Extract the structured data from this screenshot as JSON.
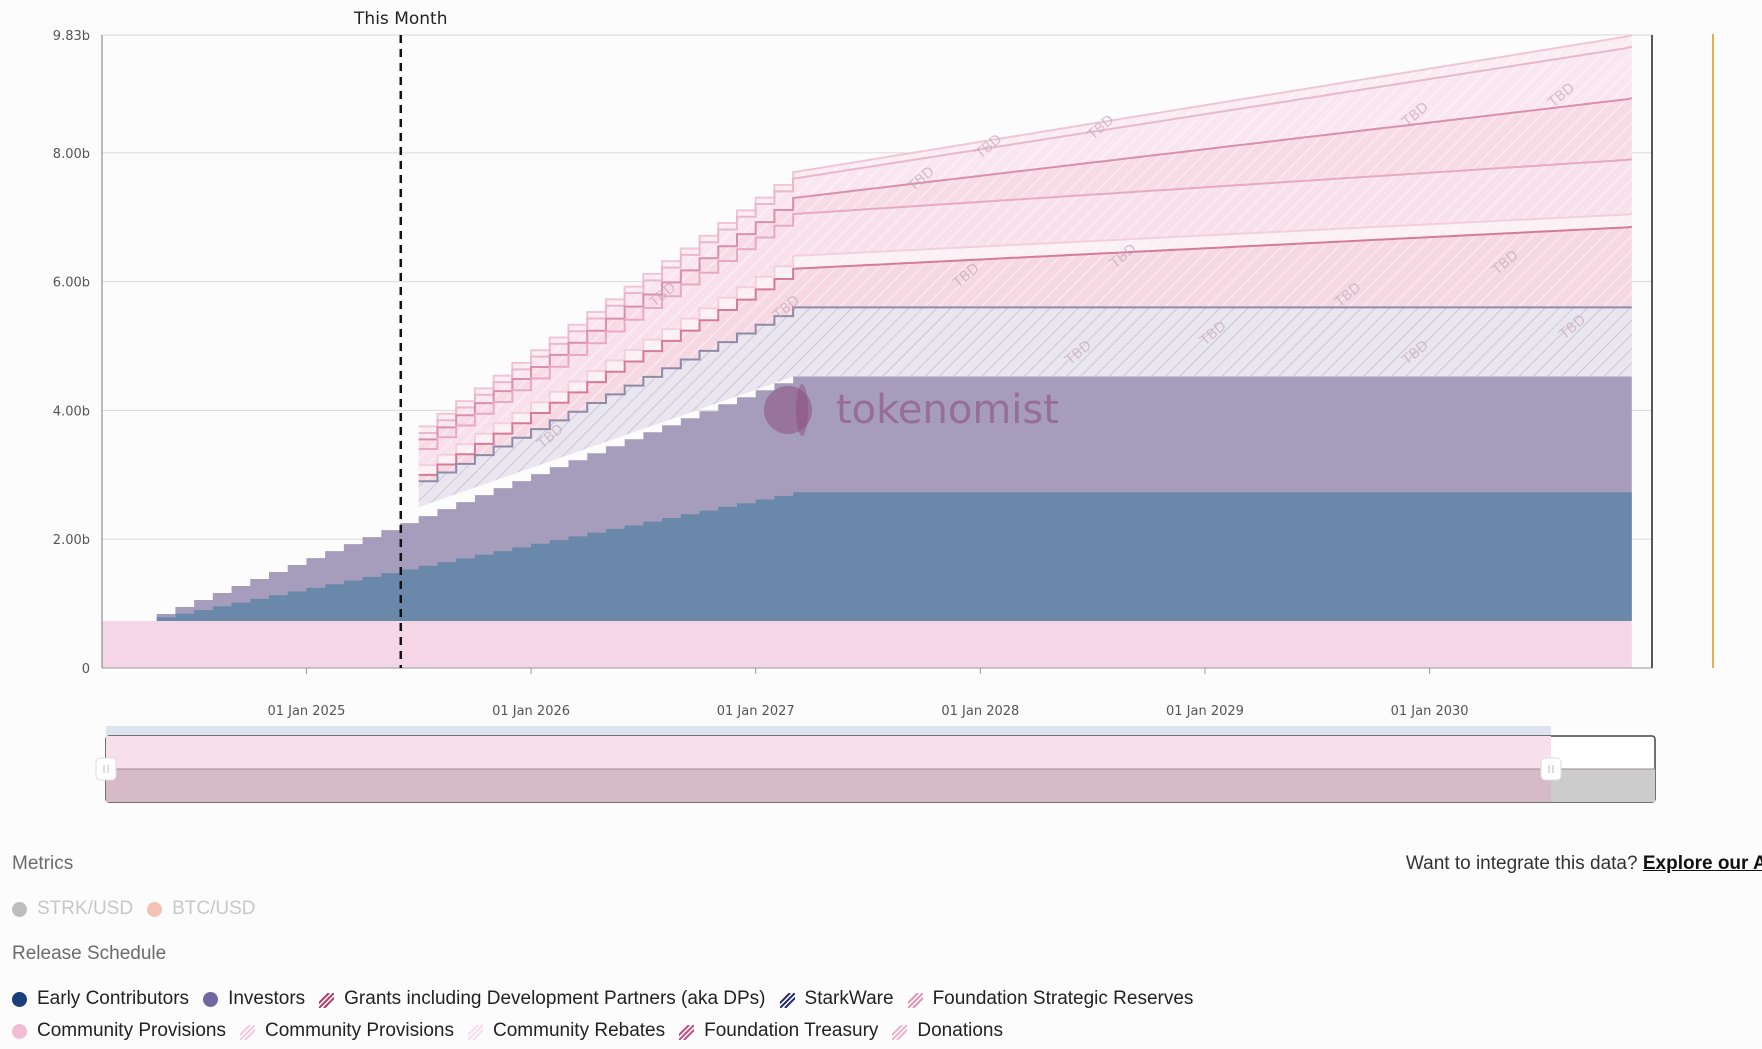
{
  "chart_data": {
    "type": "area",
    "marker_label": "This Month",
    "y_ticks": [
      "0",
      "2.00b",
      "4.00b",
      "6.00b",
      "8.00b",
      "9.83b"
    ],
    "y_tick_values": [
      0,
      2,
      4,
      6,
      8,
      9.83
    ],
    "x_ticks": [
      "01 Jan 2025",
      "01 Jan 2026",
      "01 Jan 2027",
      "01 Jan 2028",
      "01 Jan 2029",
      "01 Jan 2030"
    ],
    "x_tick_values": [
      2025.0,
      2026.0,
      2027.0,
      2028.0,
      2029.0,
      2030.0
    ],
    "x_range": [
      2024.09,
      2030.99
    ],
    "y_range": [
      0,
      9.83
    ],
    "marker_x": 2025.42,
    "watermark": "tokenomist",
    "tbd_label": "TBD",
    "series": [
      {
        "name": "Community Provisions",
        "type": "flat",
        "color": "#f5d6e6",
        "value": 0.73
      },
      {
        "name": "Early Contributors",
        "type": "step",
        "color": "#6a89aa",
        "start": 2024.25,
        "end": 2027.17,
        "from": 0.73,
        "to": 2.73
      },
      {
        "name": "Investors",
        "type": "step",
        "color": "#a69cbc",
        "start": 2024.25,
        "end": 2027.17,
        "from": 0.73,
        "to": 4.53,
        "baseline": "Early Contributors"
      },
      {
        "name": "StarkWare",
        "type": "stepband",
        "color": "#e9e6ef",
        "line": "#8f8aa8",
        "start": 2025.5,
        "end": 2027.17,
        "from": 2.9,
        "to": 5.6,
        "final": 5.6
      },
      {
        "name": "Grants including Development Partners (aka DPs)",
        "type": "stepband",
        "color": "#f6d8e2",
        "line": "#d67a9a",
        "start": 2025.5,
        "end": 2027.17,
        "from": 3.0,
        "to": 6.2,
        "final": 6.85
      },
      {
        "name": "Community Rebates",
        "type": "stepband",
        "color": "#fbf0f4",
        "line": "#f3cfdc",
        "start": 2025.5,
        "end": 2027.17,
        "from": 3.15,
        "to": 6.4,
        "final": 7.05
      },
      {
        "name": "Foundation Strategic Reserves",
        "type": "stepband",
        "color": "#f8e1ea",
        "line": "#e7aac2",
        "start": 2025.5,
        "end": 2027.17,
        "from": 3.4,
        "to": 7.05,
        "final": 7.9
      },
      {
        "name": "Foundation Treasury",
        "type": "stepband",
        "color": "#f7dbe5",
        "line": "#da8fac",
        "start": 2025.5,
        "end": 2027.17,
        "from": 3.55,
        "to": 7.3,
        "final": 8.85
      },
      {
        "name": "Donations",
        "type": "stepband",
        "color": "#f9e6ee",
        "line": "#e9b8cb",
        "start": 2025.5,
        "end": 2027.17,
        "from": 3.65,
        "to": 7.6,
        "final": 9.65
      },
      {
        "name": "Community Provisions",
        "type": "stepband",
        "color": "#fbecf2",
        "line": "#f0c6d6",
        "start": 2025.5,
        "end": 2027.17,
        "from": 3.75,
        "to": 7.7,
        "final": 9.83
      }
    ]
  },
  "navigator": {
    "color_top": "#f8e0ea",
    "color_bottom": "#d6bbc6",
    "color_out": "#cccccc"
  },
  "metrics": {
    "title": "Metrics",
    "items": [
      {
        "label": "STRK/USD",
        "color": "#bdbdbd"
      },
      {
        "label": "BTC/USD",
        "color": "#f3c2b4"
      }
    ]
  },
  "release_schedule": {
    "title": "Release Schedule",
    "row1": [
      {
        "label": "Early Contributors",
        "kind": "dot",
        "color": "#1b3f7a"
      },
      {
        "label": "Investors",
        "kind": "dot",
        "color": "#6f68a0"
      },
      {
        "label": "Grants including Development Partners (aka DPs)",
        "kind": "hatch",
        "color": "#b53a6a"
      },
      {
        "label": "StarkWare",
        "kind": "hatch",
        "color": "#1f2a66"
      },
      {
        "label": "Foundation Strategic Reserves",
        "kind": "hatch",
        "color": "#e294b6"
      }
    ],
    "row2": [
      {
        "label": "Community Provisions",
        "kind": "dot",
        "color": "#f1bcd6"
      },
      {
        "label": "Community Provisions",
        "kind": "hatch",
        "color": "#f2c8da"
      },
      {
        "label": "Community Rebates",
        "kind": "hatch",
        "color": "#f7dce8"
      },
      {
        "label": "Foundation Treasury",
        "kind": "hatch",
        "color": "#c94a7c"
      },
      {
        "label": "Donations",
        "kind": "hatch",
        "color": "#ecb1cb"
      }
    ]
  },
  "integrate": {
    "text": "Want to integrate this data?",
    "link": "Explore our AI"
  }
}
